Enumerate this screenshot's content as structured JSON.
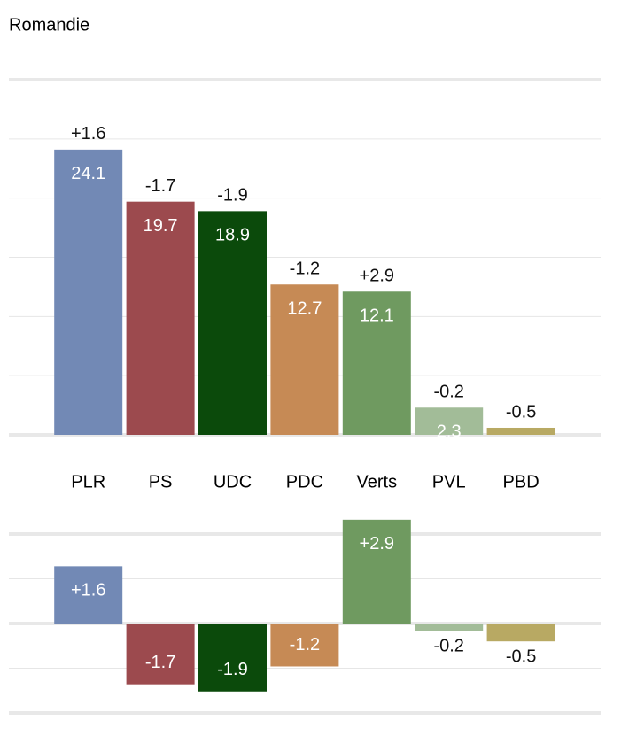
{
  "chart_data": [
    {
      "type": "bar",
      "title": "Romandie",
      "categories": [
        "PLR",
        "PS",
        "UDC",
        "PDC",
        "Verts",
        "PVL",
        "PBD"
      ],
      "values": [
        24.1,
        19.7,
        18.9,
        12.7,
        12.1,
        2.3,
        0.6
      ],
      "value_labels": [
        "24.1",
        "19.7",
        "18.9",
        "12.7",
        "12.1",
        "2.3",
        null
      ],
      "colors": [
        "#7289b5",
        "#9c4a4e",
        "#0b4a0b",
        "#c68a55",
        "#6f9a60",
        "#a2bc98",
        "#b8a963"
      ],
      "ylim": [
        0,
        30
      ],
      "yticks": [
        0,
        5,
        10,
        15,
        20,
        25,
        30
      ],
      "grid": true
    },
    {
      "type": "bar",
      "values": [
        1.6,
        -1.7,
        -1.9,
        -1.2,
        2.9,
        -0.2,
        -0.5
      ],
      "value_labels": [
        "+1.6",
        "-1.7",
        "-1.9",
        "-1.2",
        "+2.9",
        "-0.2",
        "-0.5"
      ],
      "colors": [
        "#7289b5",
        "#9c4a4e",
        "#0b4a0b",
        "#c68a55",
        "#6f9a60",
        "#a2bc98",
        "#b8a963"
      ],
      "ylim": [
        -2.5,
        2.5
      ],
      "yticks": [
        -2.5,
        -1.25,
        0,
        1.25,
        2.5
      ],
      "grid": true
    }
  ]
}
